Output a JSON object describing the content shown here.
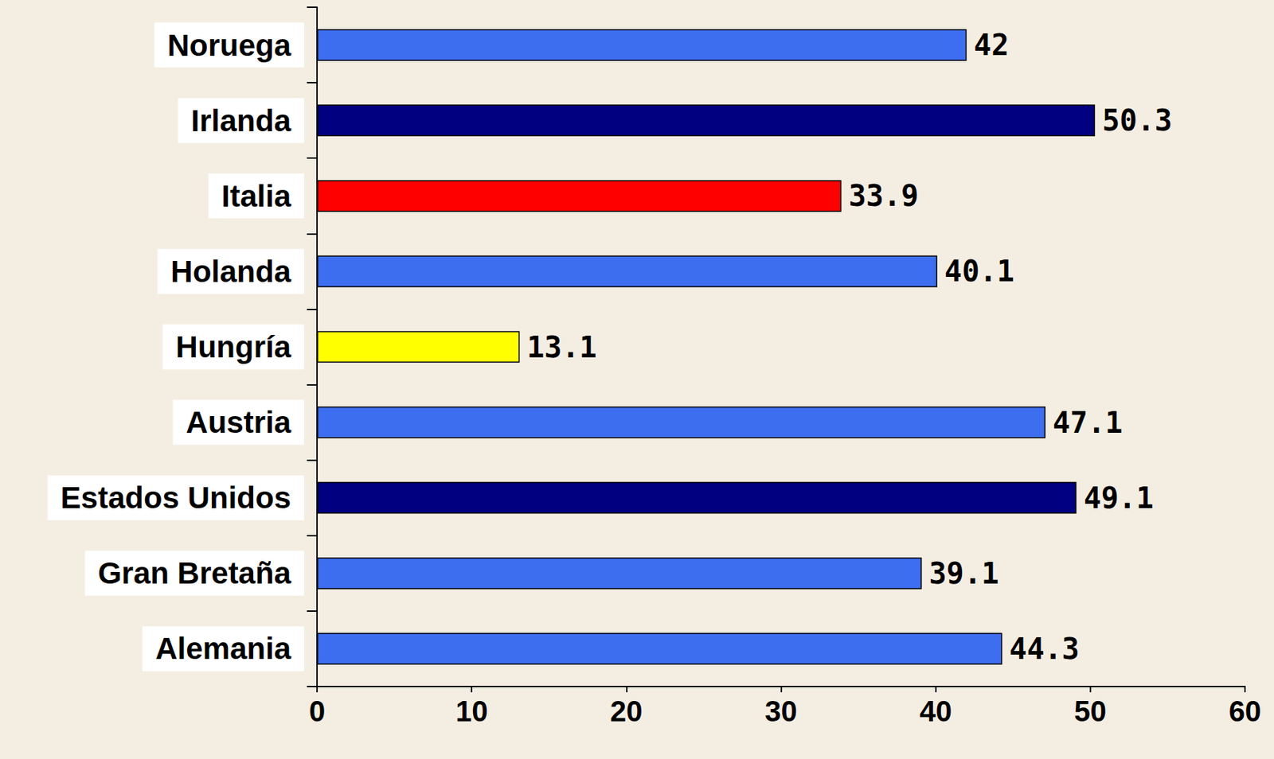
{
  "chart_data": {
    "type": "bar",
    "orientation": "horizontal",
    "categories": [
      "Noruega",
      "Irlanda",
      "Italia",
      "Holanda",
      "Hungría",
      "Austria",
      "Estados Unidos",
      "Gran Bretaña",
      "Alemania"
    ],
    "values": [
      42,
      50.3,
      33.9,
      40.1,
      13.1,
      47.1,
      49.1,
      39.1,
      44.3
    ],
    "colors": [
      "#3d6ef0",
      "#000080",
      "#ff0000",
      "#3d6ef0",
      "#ffff00",
      "#3d6ef0",
      "#000080",
      "#3d6ef0",
      "#3d6ef0"
    ],
    "xlim": [
      0,
      60
    ],
    "xticks": [
      0,
      10,
      20,
      30,
      40,
      50,
      60
    ],
    "grid": false,
    "data_labels": true
  }
}
